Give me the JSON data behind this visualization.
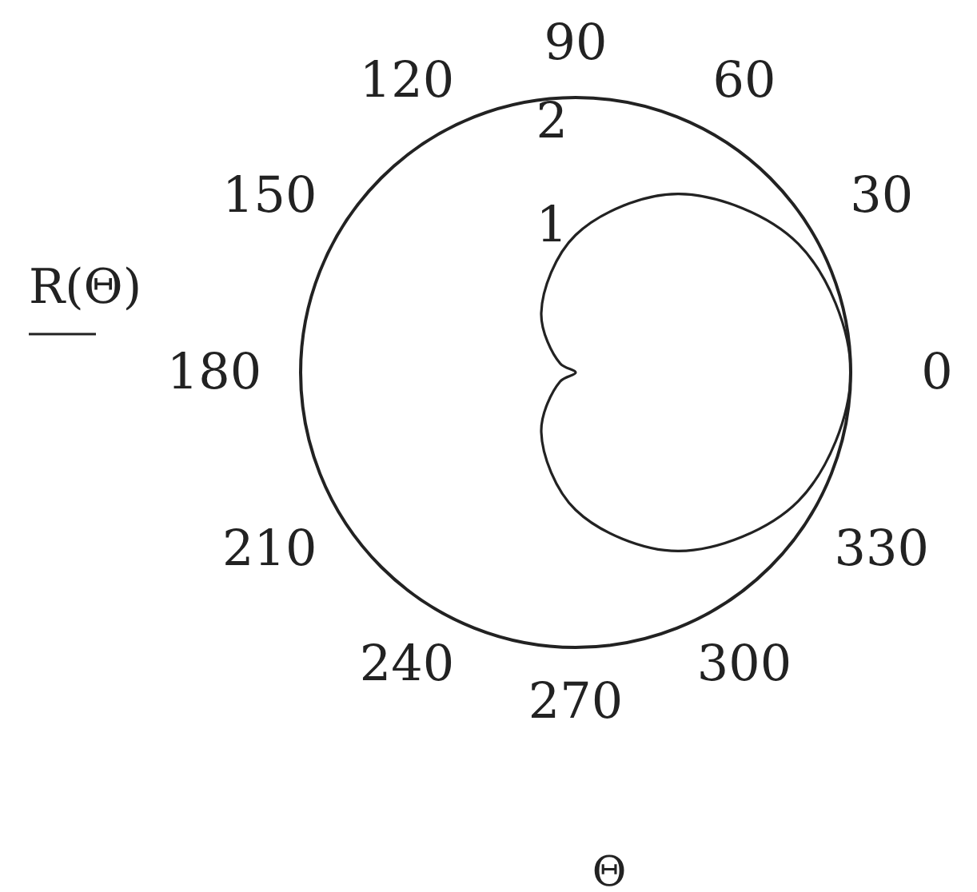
{
  "chart_data": {
    "type": "radar",
    "xlabel": "Θ",
    "categories": [
      "90",
      "60",
      "30",
      "0",
      "330",
      "300",
      "270",
      "240",
      "210",
      "180",
      "150",
      "120"
    ],
    "series": [
      {
        "name": "R(Θ)",
        "color": "#222222",
        "values": [
          1,
          1.5,
          1.87,
          2,
          1.87,
          1.5,
          1,
          0.5,
          0.13,
          0,
          0.13,
          0.5
        ]
      }
    ],
    "ylim": [
      0,
      2
    ],
    "yticks": [
      1,
      2
    ],
    "legend": "left"
  }
}
